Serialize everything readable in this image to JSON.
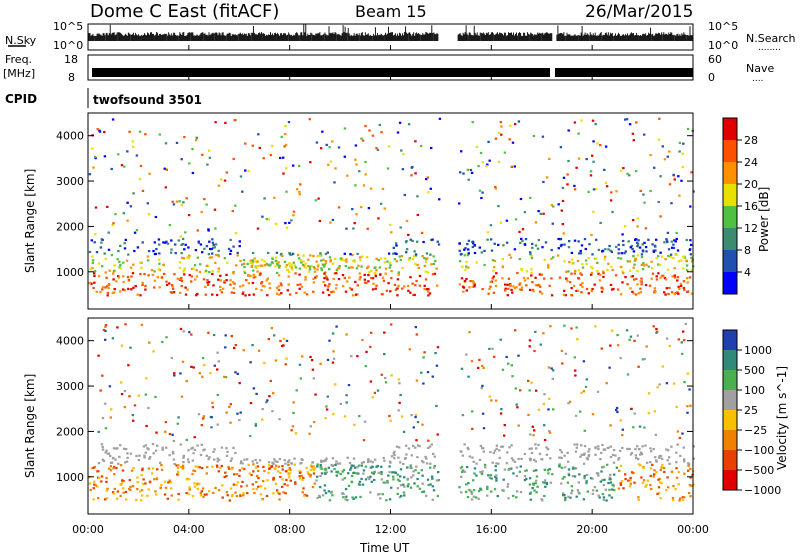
{
  "header": {
    "radar": "Dome C East (fitACF)",
    "beam": "Beam 15",
    "date": "26/Mar/2015"
  },
  "panels": {
    "nsky_label": "N.Sky",
    "nsearch_label": "N.Search",
    "nsearch_dots": "........",
    "freq_label_1": "Freq.",
    "freq_label_2": "[MHz]",
    "nave_label": "Nave",
    "nave_dots": "....",
    "cpid_label": "CPID",
    "cpid_value": "twofsound 3501",
    "noise_left_ticks": [
      "10^5",
      "10^0"
    ],
    "noise_right_ticks": [
      "10^5",
      "10^0"
    ],
    "freq_ticks": [
      "18",
      "8"
    ],
    "nave_ticks": [
      "60",
      "0"
    ]
  },
  "chart_data": [
    {
      "type": "heatmap",
      "parameter": "Power",
      "ylabel": "Slant Range [km]",
      "xlabel": "Time UT",
      "xlim": [
        "00:00",
        "24:00"
      ],
      "ylim": [
        180,
        4500
      ],
      "y_ticks": [
        1000,
        2000,
        3000,
        4000
      ],
      "colorbar_label": "Power [dB]",
      "colorbar_ticks": [
        "28",
        "24",
        "20",
        "16",
        "12",
        "8",
        "4"
      ],
      "colorbar_range": [
        0,
        30
      ],
      "colors": [
        "#0000ff",
        "#2050b0",
        "#3a8c70",
        "#50c040",
        "#e8e000",
        "#ff9000",
        "#ff5000",
        "#e00000"
      ],
      "data_gaps_ut": [
        [
          "13:55",
          "14:40"
        ],
        [
          "18:25",
          "18:35"
        ]
      ],
      "dense_band_km": [
        500,
        1800
      ]
    },
    {
      "type": "heatmap",
      "parameter": "Velocity",
      "ylabel": "Slant Range [km]",
      "xlabel": "Time UT",
      "xlim": [
        "00:00",
        "24:00"
      ],
      "ylim": [
        180,
        4500
      ],
      "y_ticks": [
        1000,
        2000,
        3000,
        4000
      ],
      "colorbar_label": "Velocity [m s^-1]",
      "colorbar_ticks": [
        "1000",
        "500",
        "100",
        "25",
        "−25",
        "−100",
        "−500",
        "−1000"
      ],
      "colors": [
        "#2040b0",
        "#2e8a7a",
        "#48b050",
        "#a0a0a0",
        "#f8c000",
        "#f08000",
        "#e84000",
        "#e00000"
      ],
      "data_gaps_ut": [
        [
          "13:55",
          "14:40"
        ],
        [
          "18:25",
          "18:35"
        ]
      ],
      "dense_band_km": [
        500,
        1800
      ]
    }
  ],
  "x_ticks": [
    "00:00",
    "04:00",
    "08:00",
    "12:00",
    "16:00",
    "20:00",
    "00:00"
  ],
  "x_label": "Time UT"
}
